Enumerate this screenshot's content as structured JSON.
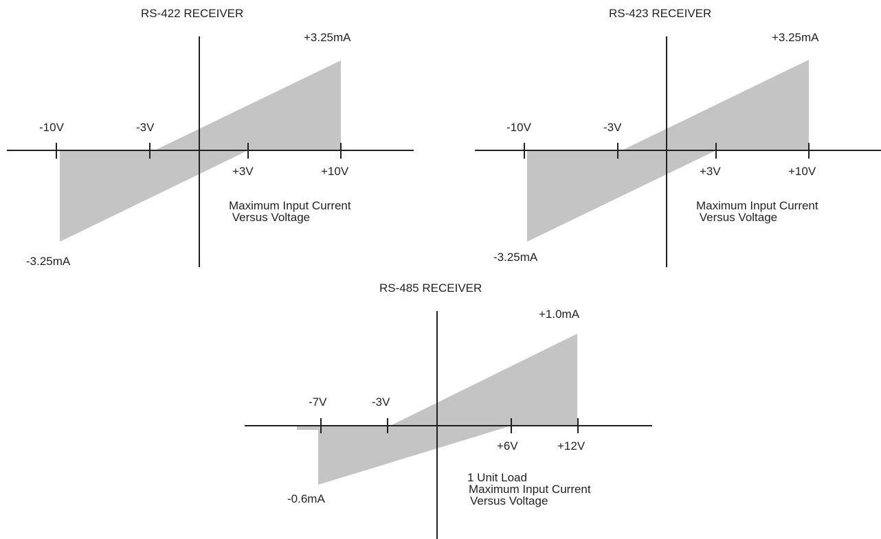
{
  "colors": {
    "fill": "#c4c4c4",
    "line": "#231f20",
    "background": "#ffffff"
  },
  "panels": [
    {
      "id": "rs422",
      "title": "RS-422 RECEIVER",
      "labels": {
        "neg_v": "-10V",
        "neg_threshold": "-3V",
        "pos_threshold": "+3V",
        "pos_v": "+10V",
        "pos_current": "+3.25mA",
        "neg_current": "-3.25mA"
      },
      "caption_lines": [
        "Maximum Input Current",
        " Versus Voltage"
      ]
    },
    {
      "id": "rs423",
      "title": "RS-423 RECEIVER",
      "labels": {
        "neg_v": "-10V",
        "neg_threshold": "-3V",
        "pos_threshold": "+3V",
        "pos_v": "+10V",
        "pos_current": "+3.25mA",
        "neg_current": "-3.25mA"
      },
      "caption_lines": [
        "Maximum Input Current",
        " Versus Voltage"
      ]
    },
    {
      "id": "rs485",
      "title": "RS-485 RECEIVER",
      "labels": {
        "neg_v": "-7V",
        "neg_threshold": "-3V",
        "pos_threshold": "+6V",
        "pos_v": "+12V",
        "pos_current": "+1.0mA",
        "neg_current": "-0.6mA"
      },
      "caption_lines": [
        "1 Unit Load",
        "Maximum Input Current",
        "Versus Voltage"
      ]
    }
  ]
}
